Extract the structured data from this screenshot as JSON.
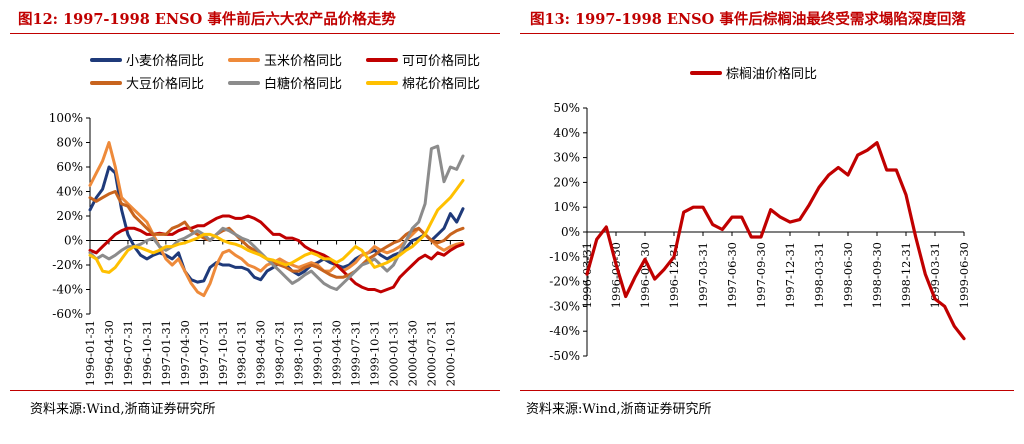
{
  "left": {
    "figure_title": "图12:   1997-1998 ENSO 事件前后六大农产品价格走势",
    "source": "资料来源:Wind,浙商证券研究所"
  },
  "right": {
    "figure_title": "图13:   1997-1998 ENSO 事件后棕榈油最终受需求塌陷深度回落",
    "source": "资料来源:Wind,浙商证券研究所"
  },
  "colors": {
    "title_red": "#c00000",
    "wheat": "#1f3a7a",
    "corn": "#ee8a3a",
    "cocoa": "#c00000",
    "soy": "#c8641e",
    "sugar": "#8c8c8c",
    "cotton": "#ffc000",
    "palm": "#c00000"
  },
  "chart_data": [
    {
      "type": "line",
      "title": "",
      "xlabel": "",
      "ylabel": "",
      "ylim": [
        -60,
        100
      ],
      "yticks": [
        "100%",
        "80%",
        "60%",
        "40%",
        "20%",
        "0%",
        "-20%",
        "-40%",
        "-60%"
      ],
      "xticks": [
        "1996-01-31",
        "1996-04-30",
        "1996-07-31",
        "1996-10-31",
        "1997-01-31",
        "1997-04-30",
        "1997-07-31",
        "1997-10-31",
        "1998-01-31",
        "1998-04-30",
        "1998-07-31",
        "1998-10-31",
        "1999-01-31",
        "1999-04-30",
        "1999-07-31",
        "1999-10-31",
        "2000-01-31",
        "2000-04-30",
        "2000-07-31",
        "2000-10-31"
      ],
      "legend_position": "top",
      "grid": false,
      "x_months": [
        "1996-01",
        "1996-02",
        "1996-03",
        "1996-04",
        "1996-05",
        "1996-06",
        "1996-07",
        "1996-08",
        "1996-09",
        "1996-10",
        "1996-11",
        "1996-12",
        "1997-01",
        "1997-02",
        "1997-03",
        "1997-04",
        "1997-05",
        "1997-06",
        "1997-07",
        "1997-08",
        "1997-09",
        "1997-10",
        "1997-11",
        "1997-12",
        "1998-01",
        "1998-02",
        "1998-03",
        "1998-04",
        "1998-05",
        "1998-06",
        "1998-07",
        "1998-08",
        "1998-09",
        "1998-10",
        "1998-11",
        "1998-12",
        "1999-01",
        "1999-02",
        "1999-03",
        "1999-04",
        "1999-05",
        "1999-06",
        "1999-07",
        "1999-08",
        "1999-09",
        "1999-10",
        "1999-11",
        "1999-12",
        "2000-01",
        "2000-02",
        "2000-03",
        "2000-04",
        "2000-05",
        "2000-06",
        "2000-07",
        "2000-08",
        "2000-09",
        "2000-10",
        "2000-11",
        "2000-12"
      ],
      "series": [
        {
          "name": "小麦价格同比",
          "color_key": "wheat",
          "values": [
            25,
            35,
            42,
            60,
            55,
            25,
            5,
            -5,
            -12,
            -15,
            -12,
            -10,
            -12,
            -15,
            -10,
            -25,
            -32,
            -34,
            -33,
            -22,
            -18,
            -20,
            -20,
            -22,
            -22,
            -24,
            -30,
            -32,
            -25,
            -22,
            -18,
            -20,
            -25,
            -28,
            -25,
            -20,
            -18,
            -15,
            -18,
            -20,
            -22,
            -20,
            -15,
            -12,
            -10,
            -8,
            -12,
            -15,
            -12,
            -10,
            -6,
            0,
            2,
            5,
            0,
            5,
            10,
            22,
            15,
            26
          ]
        },
        {
          "name": "玉米价格同比",
          "color_key": "corn",
          "values": [
            45,
            55,
            65,
            80,
            60,
            35,
            30,
            25,
            20,
            15,
            5,
            -5,
            -15,
            -20,
            -15,
            -25,
            -35,
            -42,
            -45,
            -35,
            -20,
            -10,
            -8,
            -12,
            -15,
            -20,
            -22,
            -25,
            -20,
            -18,
            -15,
            -18,
            -20,
            -22,
            -20,
            -18,
            -20,
            -25,
            -25,
            -20,
            -25,
            -22,
            -18,
            -12,
            -10,
            -5,
            -8,
            -10,
            -8,
            -5,
            0,
            5,
            10,
            5,
            0,
            -5,
            -8,
            -5,
            -3,
            -2
          ]
        },
        {
          "name": "可可价格同比",
          "color_key": "cocoa",
          "values": [
            -8,
            -10,
            -5,
            0,
            5,
            8,
            10,
            10,
            8,
            5,
            5,
            6,
            5,
            5,
            8,
            10,
            10,
            12,
            12,
            15,
            18,
            20,
            20,
            18,
            18,
            20,
            18,
            15,
            10,
            5,
            5,
            2,
            2,
            0,
            -5,
            -8,
            -10,
            -12,
            -15,
            -20,
            -25,
            -30,
            -35,
            -38,
            -40,
            -40,
            -42,
            -40,
            -38,
            -30,
            -25,
            -20,
            -15,
            -12,
            -15,
            -10,
            -12,
            -8,
            -5,
            -3
          ]
        },
        {
          "name": "大豆价格同比",
          "color_key": "soy",
          "values": [
            35,
            32,
            35,
            38,
            40,
            30,
            28,
            20,
            15,
            10,
            5,
            5,
            5,
            10,
            12,
            15,
            8,
            5,
            2,
            0,
            5,
            8,
            10,
            5,
            0,
            -5,
            -8,
            -12,
            -15,
            -18,
            -20,
            -22,
            -25,
            -25,
            -22,
            -20,
            -22,
            -25,
            -28,
            -30,
            -30,
            -28,
            -25,
            -20,
            -15,
            -12,
            -8,
            -5,
            -2,
            0,
            5,
            8,
            10,
            5,
            0,
            -2,
            0,
            5,
            8,
            10
          ]
        },
        {
          "name": "白糖价格同比",
          "color_key": "sugar",
          "values": [
            -10,
            -15,
            -12,
            -15,
            -12,
            -8,
            -5,
            -5,
            -3,
            0,
            2,
            -5,
            -8,
            -5,
            0,
            2,
            5,
            8,
            5,
            0,
            5,
            10,
            8,
            5,
            2,
            0,
            -5,
            -10,
            -15,
            -20,
            -25,
            -30,
            -35,
            -32,
            -28,
            -25,
            -30,
            -35,
            -38,
            -40,
            -35,
            -30,
            -25,
            -20,
            -18,
            -15,
            -20,
            -25,
            -20,
            -10,
            0,
            10,
            15,
            30,
            75,
            77,
            48,
            60,
            58,
            69
          ]
        },
        {
          "name": "棉花价格同比",
          "color_key": "cotton",
          "values": [
            -12,
            -15,
            -25,
            -26,
            -22,
            -15,
            -8,
            -5,
            -6,
            -8,
            -10,
            -8,
            -5,
            -5,
            -3,
            -2,
            0,
            2,
            5,
            5,
            3,
            0,
            -2,
            -3,
            -5,
            -8,
            -10,
            -12,
            -15,
            -16,
            -18,
            -20,
            -18,
            -15,
            -12,
            -10,
            -12,
            -15,
            -15,
            -18,
            -15,
            -10,
            -5,
            -8,
            -15,
            -22,
            -20,
            -18,
            -15,
            -12,
            -8,
            -5,
            0,
            5,
            15,
            25,
            30,
            35,
            42,
            49
          ]
        }
      ]
    },
    {
      "type": "line",
      "title": "",
      "xlabel": "",
      "ylabel": "",
      "ylim": [
        -50,
        50
      ],
      "yticks": [
        "50%",
        "40%",
        "30%",
        "20%",
        "10%",
        "0%",
        "-10%",
        "-20%",
        "-30%",
        "-40%",
        "-50%"
      ],
      "xticks": [
        "1996-03-31",
        "1996-06-30",
        "1996-09-30",
        "1996-12-31",
        "1997-03-31",
        "1997-06-30",
        "1997-09-30",
        "1997-12-31",
        "1998-03-31",
        "1998-06-30",
        "1998-09-30",
        "1998-12-31",
        "1999-03-31",
        "1999-06-30"
      ],
      "legend_position": "top",
      "grid": false,
      "x_months": [
        "1996-03",
        "1996-04",
        "1996-05",
        "1996-06",
        "1996-07",
        "1996-08",
        "1996-09",
        "1996-10",
        "1996-11",
        "1996-12",
        "1997-01",
        "1997-02",
        "1997-03",
        "1997-04",
        "1997-05",
        "1997-06",
        "1997-07",
        "1997-08",
        "1997-09",
        "1997-10",
        "1997-11",
        "1997-12",
        "1998-01",
        "1998-02",
        "1998-03",
        "1998-04",
        "1998-05",
        "1998-06",
        "1998-07",
        "1998-08",
        "1998-09",
        "1998-10",
        "1998-11",
        "1998-12",
        "1999-01",
        "1999-02",
        "1999-03",
        "1999-04",
        "1999-05",
        "1999-06"
      ],
      "series": [
        {
          "name": "棕榈油价格同比",
          "color_key": "palm",
          "values": [
            -17,
            -3,
            2,
            -13,
            -26,
            -18,
            -11,
            -19,
            -15,
            -10,
            8,
            10,
            10,
            3,
            1,
            6,
            6,
            -2,
            -2,
            9,
            6,
            4,
            5,
            11,
            18,
            23,
            26,
            23,
            31,
            33,
            36,
            25,
            25,
            15,
            -2,
            -17,
            -27,
            -30,
            -38,
            -43
          ]
        }
      ]
    }
  ]
}
